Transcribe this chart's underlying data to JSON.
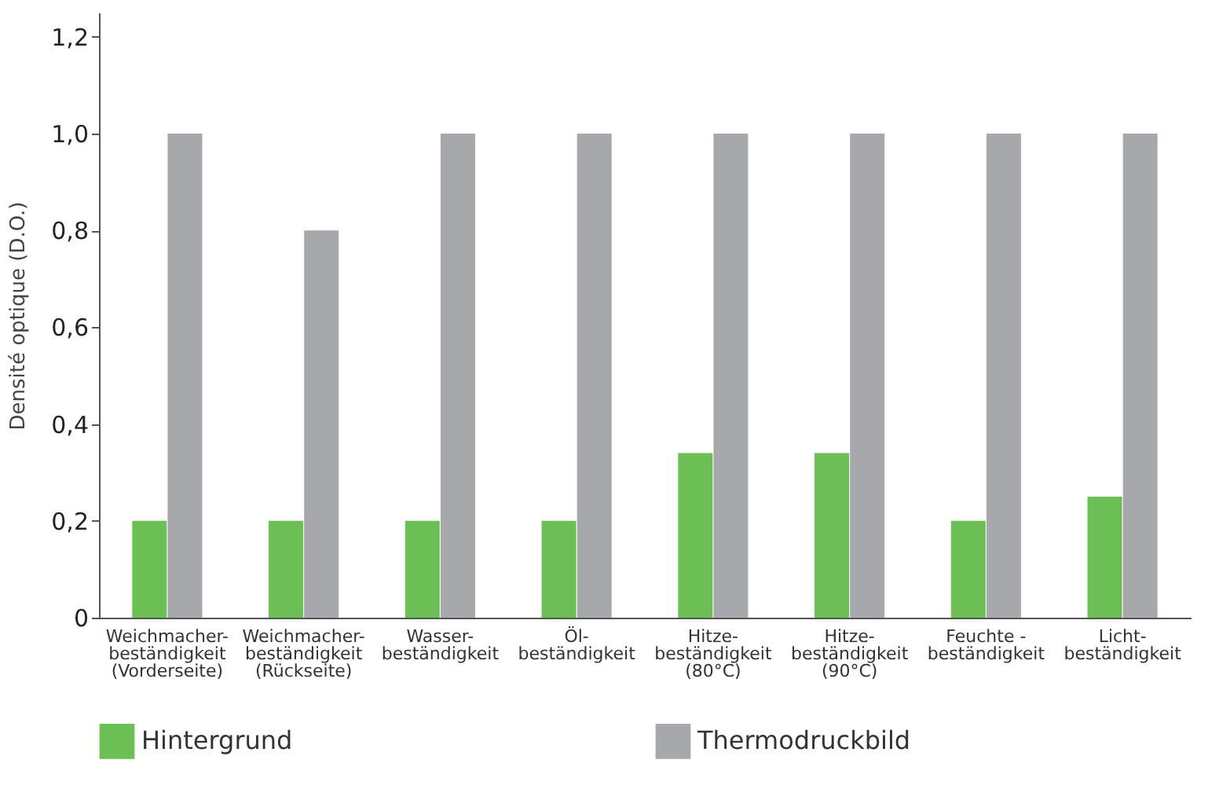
{
  "chart_data": {
    "type": "bar",
    "ylabel": "Densité optique (D.O.)",
    "categories": [
      "Weichmacher-\nbeständigkeit\n(Vorderseite)",
      "Weichmacher-\nbeständigkeit\n(Rückseite)",
      "Wasser-\nbeständigkeit",
      "Öl-\nbeständigkeit",
      "Hitze-\nbeständigkeit\n(80°C)",
      "Hitze-\nbeständigkeit\n(90°C)",
      "Feuchte -\nbeständigkeit",
      "Licht-\nbeständigkeit"
    ],
    "series": [
      {
        "name": "Hintergrund",
        "color": "#6cbf55",
        "values": [
          0.2,
          0.2,
          0.2,
          0.2,
          0.34,
          0.34,
          0.2,
          0.25
        ]
      },
      {
        "name": "Thermodruckbild",
        "color": "#a7a8ab",
        "values": [
          1.0,
          0.8,
          1.0,
          1.0,
          1.0,
          1.0,
          1.0,
          1.0
        ]
      }
    ],
    "ylim": [
      0,
      1.25
    ],
    "yticks": [
      0,
      {
        "value": 0.2,
        "label": "0,2"
      },
      {
        "value": 0.4,
        "label": "0,4"
      },
      {
        "value": 0.6,
        "label": "0,6"
      },
      {
        "value": 0.8,
        "label": "0,8"
      },
      {
        "value": 1.0,
        "label": "1,0"
      },
      {
        "value": 1.2,
        "label": "1,2"
      }
    ],
    "grid": false,
    "legend": "bottom"
  }
}
